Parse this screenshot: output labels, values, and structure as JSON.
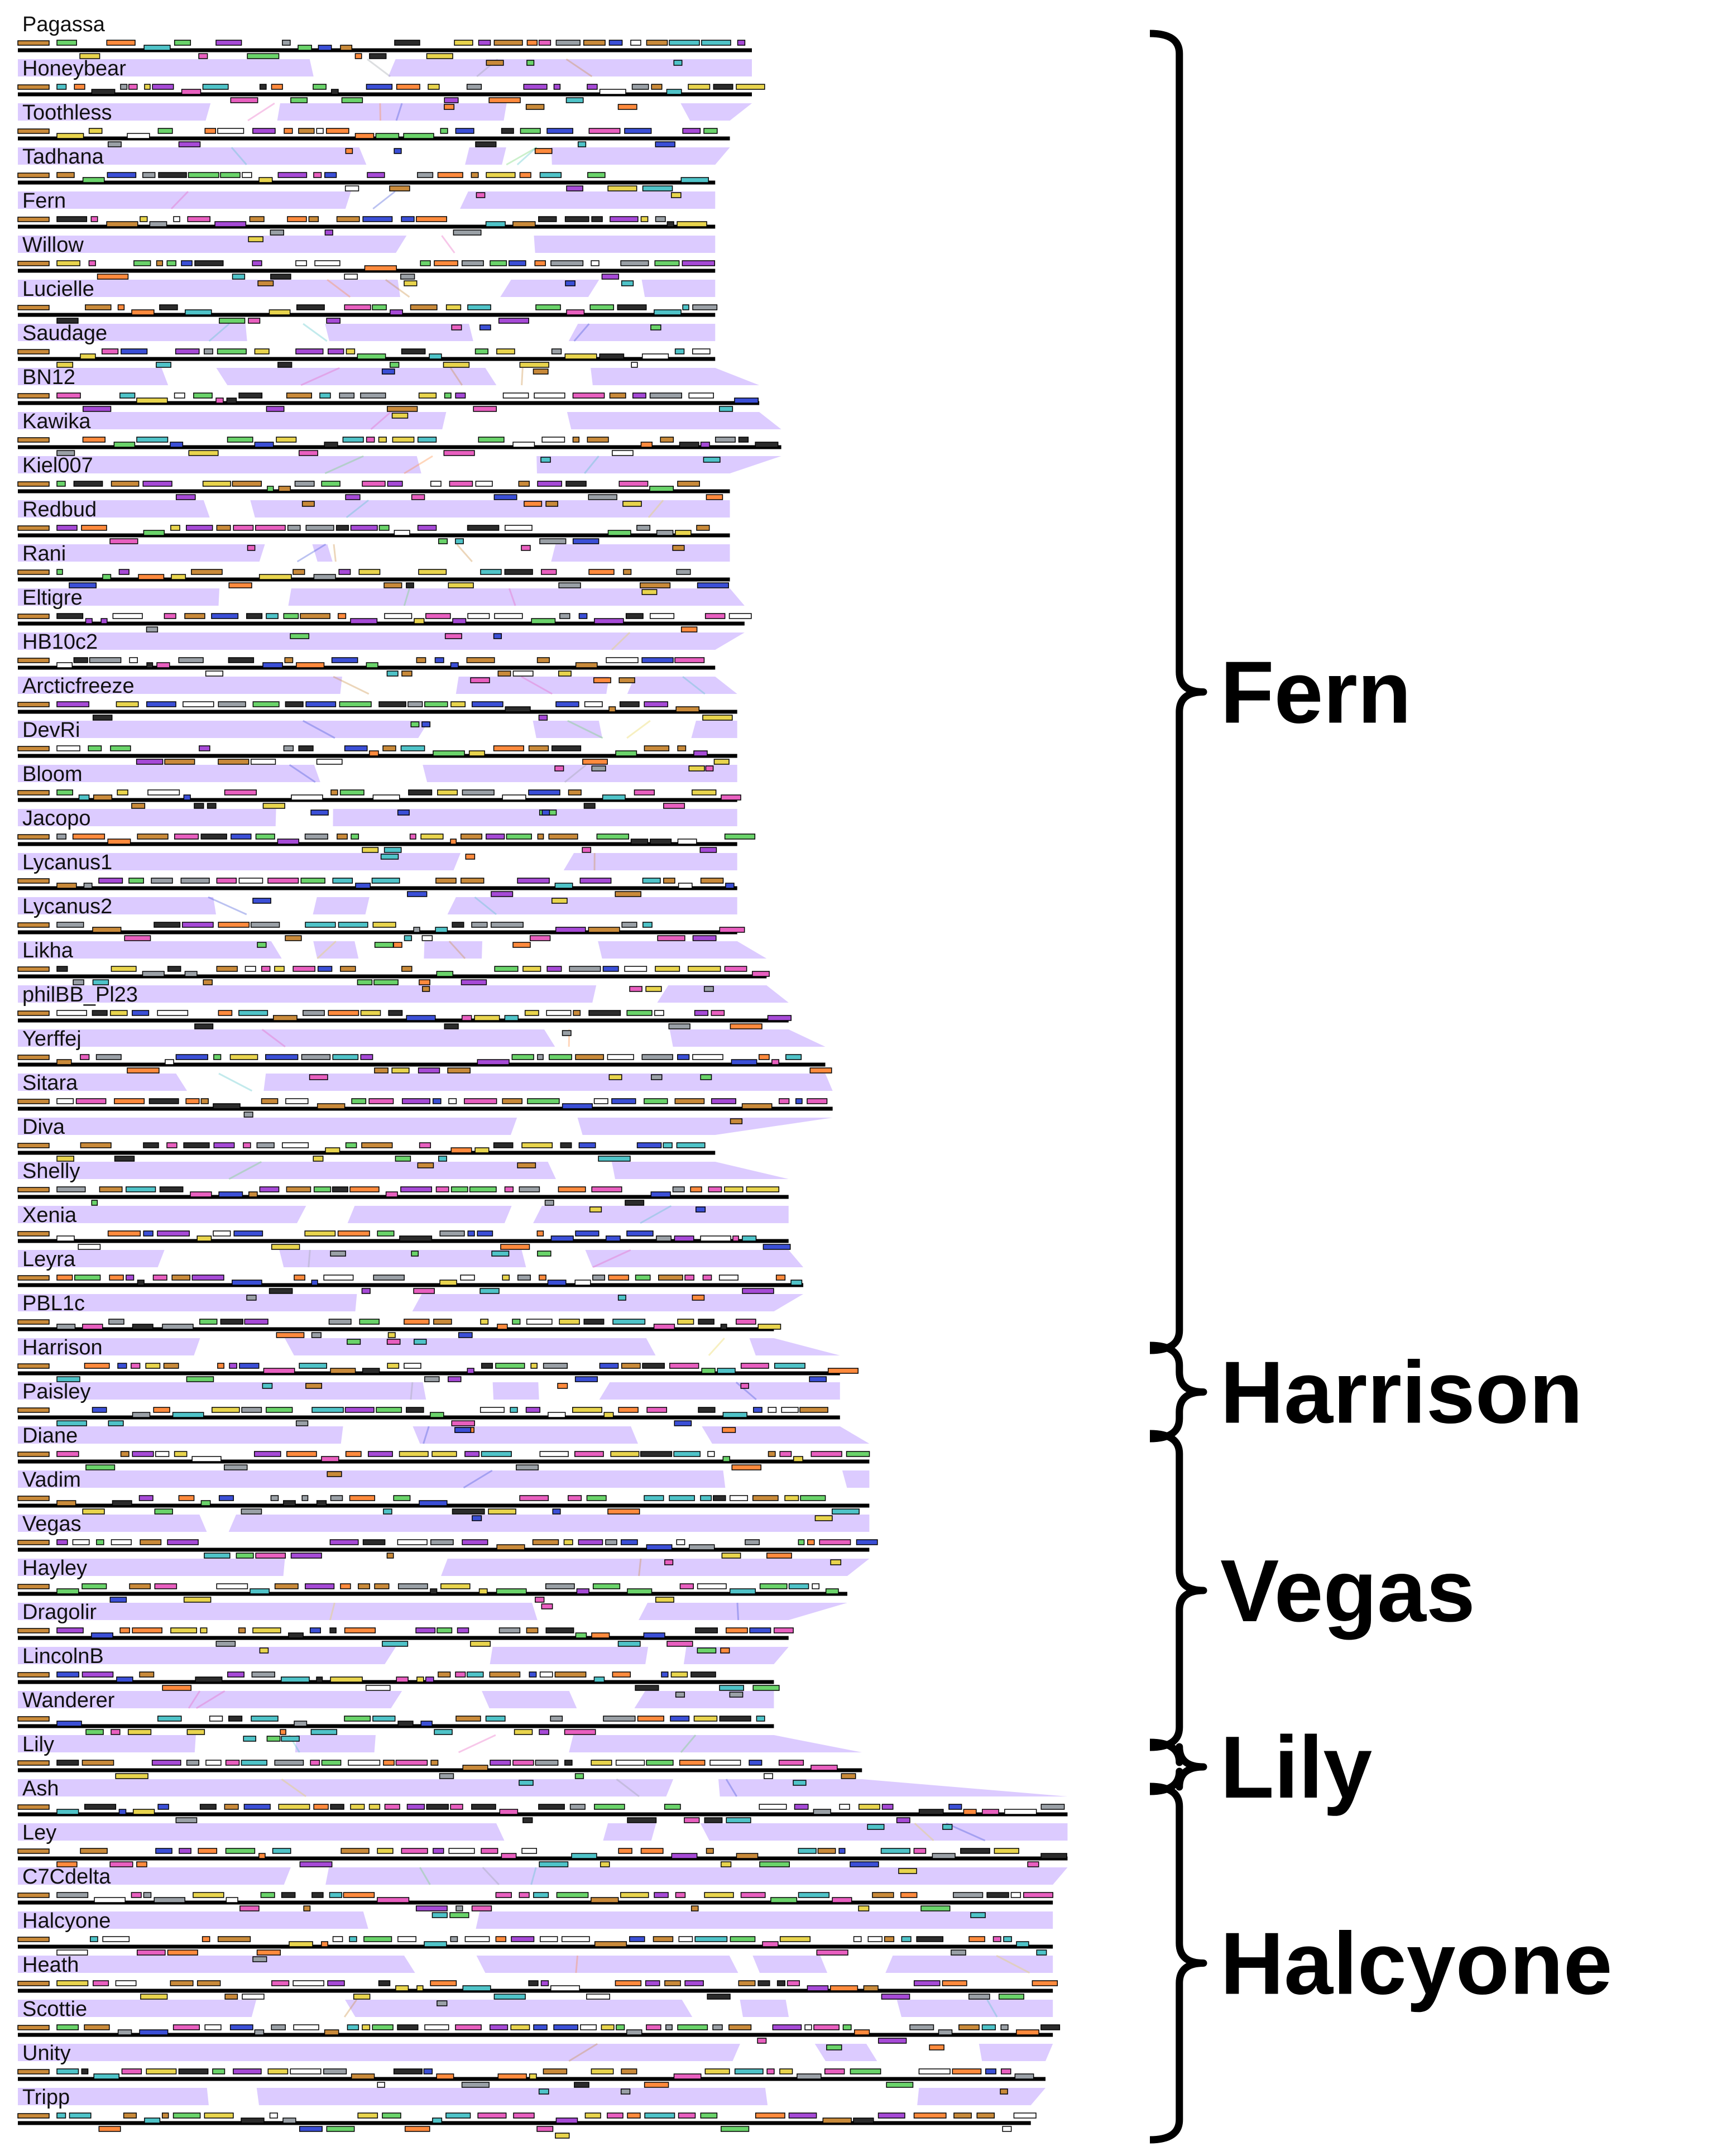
{
  "genomes": [
    {
      "name": "Pagassa",
      "length": 1.0
    },
    {
      "name": "Honeybear",
      "length": 1.0
    },
    {
      "name": "Toothless",
      "length": 0.97
    },
    {
      "name": "Tadhana",
      "length": 0.95
    },
    {
      "name": "Fern",
      "length": 0.95
    },
    {
      "name": "Willow",
      "length": 0.95
    },
    {
      "name": "Lucielle",
      "length": 0.95
    },
    {
      "name": "Saudage",
      "length": 0.95
    },
    {
      "name": "BN12",
      "length": 1.01
    },
    {
      "name": "Kawika",
      "length": 1.04
    },
    {
      "name": "Kiel007",
      "length": 0.97
    },
    {
      "name": "Redbud",
      "length": 0.97
    },
    {
      "name": "Rani",
      "length": 0.97
    },
    {
      "name": "Eltigre",
      "length": 0.99
    },
    {
      "name": "HB10c2",
      "length": 0.95
    },
    {
      "name": "Arcticfreeze",
      "length": 0.98
    },
    {
      "name": "DevRi",
      "length": 0.98
    },
    {
      "name": "Bloom",
      "length": 0.98
    },
    {
      "name": "Jacopo",
      "length": 0.98
    },
    {
      "name": "Lycanus1",
      "length": 0.98
    },
    {
      "name": "Lycanus2",
      "length": 0.98
    },
    {
      "name": "Likha",
      "length": 1.02
    },
    {
      "name": "philBB_Pl23",
      "length": 1.05
    },
    {
      "name": "Yerffej",
      "length": 1.1
    },
    {
      "name": "Sitara",
      "length": 1.11
    },
    {
      "name": "Diva",
      "length": 0.95
    },
    {
      "name": "Shelly",
      "length": 1.05
    },
    {
      "name": "Xenia",
      "length": 1.05
    },
    {
      "name": "Leyra",
      "length": 1.07
    },
    {
      "name": "PBL1c",
      "length": 1.03
    },
    {
      "name": "Harrison",
      "length": 1.12
    },
    {
      "name": "Paisley",
      "length": 1.12
    },
    {
      "name": "Diane",
      "length": 1.16
    },
    {
      "name": "Vadim",
      "length": 1.16
    },
    {
      "name": "Vegas",
      "length": 1.16
    },
    {
      "name": "Hayley",
      "length": 1.13
    },
    {
      "name": "Dragolir",
      "length": 1.05
    },
    {
      "name": "LincolnB",
      "length": 1.03
    },
    {
      "name": "Wanderer",
      "length": 1.03
    },
    {
      "name": "Lily",
      "length": 1.15
    },
    {
      "name": "Ash",
      "length": 1.43
    },
    {
      "name": "Ley",
      "length": 1.43
    },
    {
      "name": "C7Cdelta",
      "length": 1.41
    },
    {
      "name": "Halcyone",
      "length": 1.41
    },
    {
      "name": "Heath",
      "length": 1.41
    },
    {
      "name": "Scottie",
      "length": 1.41
    },
    {
      "name": "Unity",
      "length": 1.4
    },
    {
      "name": "Tripp",
      "length": 1.38
    }
  ],
  "clusters": [
    {
      "label": "Fern",
      "first": 0,
      "last": 29
    },
    {
      "label": "Harrison",
      "first": 30,
      "last": 31
    },
    {
      "label": "Vegas",
      "first": 32,
      "last": 38
    },
    {
      "label": "Lily",
      "first": 39,
      "last": 39
    },
    {
      "label": "Halcyone",
      "first": 40,
      "last": 47
    }
  ],
  "colors": {
    "similarity": "#dccbff",
    "genome_line": "#000000",
    "gene_palette": [
      "#e8d44d",
      "#9aa0a6",
      "#e85fbf",
      "#4fc3c8",
      "#6ad36a",
      "#c98a3a",
      "#3b4fd6",
      "#ff8a3d",
      "#a64ad6",
      "#2b2b2b",
      "#ffffff"
    ]
  }
}
